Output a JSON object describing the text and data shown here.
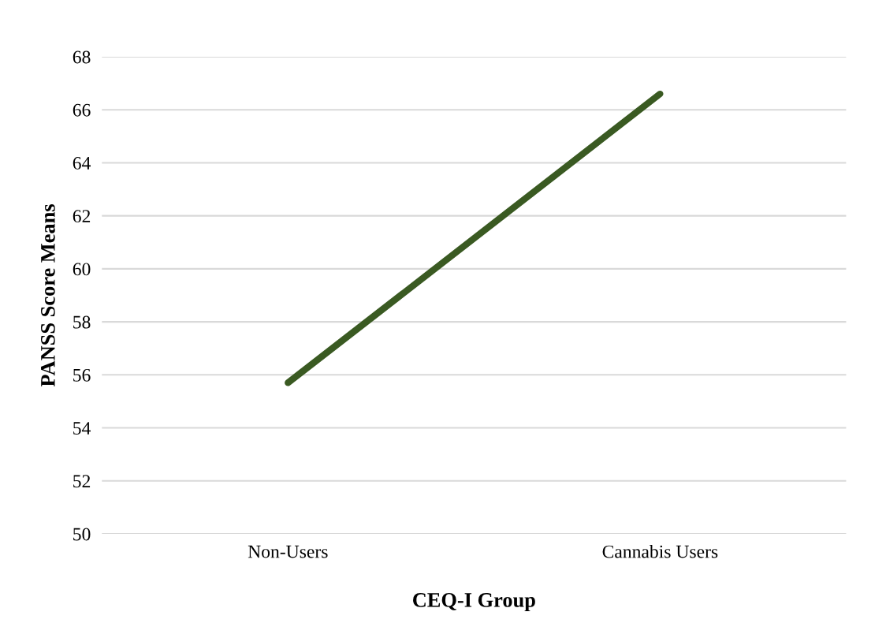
{
  "chart_data": {
    "type": "line",
    "xlabel": "CEQ-I Group",
    "ylabel": "PANSS Score Means",
    "categories": [
      "Non-Users",
      "Cannabis Users"
    ],
    "series": [
      {
        "color": "#3a5a22",
        "values": [
          55.7,
          66.6
        ]
      }
    ],
    "ylim": [
      50,
      68
    ],
    "yticks": [
      50,
      52,
      54,
      56,
      58,
      60,
      62,
      64,
      66,
      68
    ],
    "grid": "y",
    "marker": "none",
    "line_style": "solid"
  }
}
